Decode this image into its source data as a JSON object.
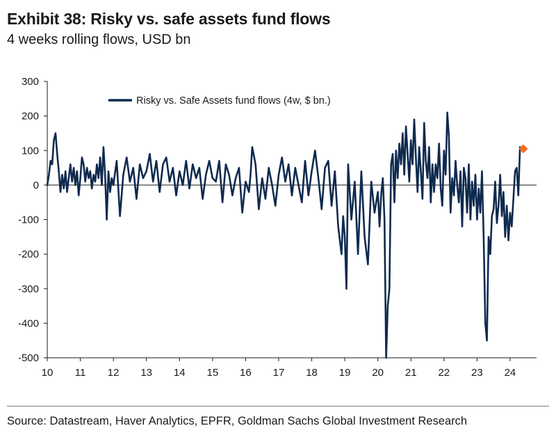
{
  "title": "Exhibit 38: Risky vs. safe assets fund flows",
  "subtitle": "4 weeks rolling flows, USD bn",
  "source": "Source: Datastream, Haver Analytics, EPFR, Goldman Sachs Global Investment Research",
  "colors": {
    "series": "#0f2a4f",
    "marker": "#f26b21",
    "axis": "#1a1a1a",
    "rule": "#7a7a7a"
  },
  "chart_data": {
    "type": "line",
    "title": "Exhibit 38: Risky vs. safe assets fund flows",
    "subtitle": "4 weeks rolling flows, USD bn",
    "xlabel": "",
    "ylabel": "",
    "xlim": [
      10,
      24.8
    ],
    "ylim": [
      -500,
      300
    ],
    "y_ticks": [
      300,
      200,
      100,
      0,
      -100,
      -200,
      -300,
      -400,
      -500
    ],
    "y_tick_labels": [
      "300",
      "200",
      "100",
      "0",
      "-100",
      "-200",
      "-300",
      "-400",
      "-500"
    ],
    "x_ticks": [
      10,
      11,
      12,
      13,
      14,
      15,
      16,
      17,
      18,
      19,
      20,
      21,
      22,
      23,
      24
    ],
    "x_tick_labels": [
      "10",
      "11",
      "12",
      "13",
      "14",
      "15",
      "16",
      "17",
      "18",
      "19",
      "20",
      "21",
      "22",
      "23",
      "24"
    ],
    "legend": {
      "position": "top-center",
      "entries": [
        "Risky vs. Safe Assets fund flows (4w, $ bn.)"
      ]
    },
    "grid": false,
    "series": [
      {
        "name": "Risky vs. Safe Assets fund flows (4w, $ bn.)",
        "x": [
          10.0,
          10.05,
          10.1,
          10.15,
          10.2,
          10.25,
          10.3,
          10.35,
          10.4,
          10.45,
          10.5,
          10.55,
          10.6,
          10.65,
          10.7,
          10.75,
          10.8,
          10.85,
          10.9,
          10.95,
          11.0,
          11.05,
          11.1,
          11.15,
          11.2,
          11.25,
          11.3,
          11.35,
          11.4,
          11.45,
          11.5,
          11.55,
          11.6,
          11.65,
          11.7,
          11.75,
          11.8,
          11.85,
          11.9,
          11.95,
          12.0,
          12.1,
          12.2,
          12.3,
          12.4,
          12.5,
          12.6,
          12.7,
          12.8,
          12.9,
          13.0,
          13.1,
          13.2,
          13.3,
          13.4,
          13.5,
          13.6,
          13.7,
          13.8,
          13.9,
          14.0,
          14.1,
          14.2,
          14.3,
          14.4,
          14.5,
          14.6,
          14.7,
          14.8,
          14.9,
          15.0,
          15.1,
          15.2,
          15.3,
          15.4,
          15.5,
          15.6,
          15.7,
          15.8,
          15.9,
          16.0,
          16.1,
          16.15,
          16.2,
          16.3,
          16.4,
          16.5,
          16.6,
          16.7,
          16.8,
          16.9,
          17.0,
          17.1,
          17.2,
          17.3,
          17.4,
          17.5,
          17.6,
          17.7,
          17.8,
          17.9,
          18.0,
          18.1,
          18.2,
          18.3,
          18.4,
          18.5,
          18.6,
          18.7,
          18.8,
          18.9,
          18.95,
          19.0,
          19.05,
          19.1,
          19.2,
          19.3,
          19.4,
          19.5,
          19.6,
          19.7,
          19.8,
          19.9,
          20.0,
          20.05,
          20.1,
          20.15,
          20.2,
          20.25,
          20.3,
          20.35,
          20.4,
          20.45,
          20.5,
          20.55,
          20.6,
          20.65,
          20.7,
          20.75,
          20.8,
          20.85,
          20.9,
          20.95,
          21.0,
          21.05,
          21.1,
          21.15,
          21.2,
          21.25,
          21.3,
          21.35,
          21.4,
          21.45,
          21.5,
          21.55,
          21.6,
          21.65,
          21.7,
          21.75,
          21.8,
          21.85,
          21.9,
          21.95,
          22.0,
          22.05,
          22.1,
          22.15,
          22.2,
          22.25,
          22.3,
          22.35,
          22.4,
          22.45,
          22.5,
          22.55,
          22.6,
          22.65,
          22.7,
          22.75,
          22.8,
          22.85,
          22.9,
          22.95,
          23.0,
          23.05,
          23.1,
          23.15,
          23.2,
          23.25,
          23.3,
          23.35,
          23.4,
          23.45,
          23.5,
          23.55,
          23.6,
          23.65,
          23.7,
          23.75,
          23.8,
          23.85,
          23.9,
          23.95,
          24.0,
          24.05,
          24.1,
          24.15,
          24.2,
          24.25,
          24.3
        ],
        "values": [
          0,
          30,
          70,
          60,
          130,
          150,
          90,
          40,
          -20,
          30,
          -10,
          40,
          -20,
          20,
          60,
          10,
          50,
          0,
          40,
          -30,
          20,
          80,
          60,
          10,
          50,
          20,
          40,
          -10,
          30,
          10,
          60,
          20,
          80,
          0,
          110,
          30,
          -100,
          40,
          -20,
          20,
          0,
          70,
          -90,
          30,
          80,
          10,
          50,
          -40,
          60,
          20,
          40,
          90,
          10,
          70,
          -20,
          60,
          80,
          10,
          50,
          -30,
          40,
          0,
          70,
          -10,
          60,
          20,
          50,
          -40,
          30,
          70,
          20,
          10,
          70,
          -50,
          60,
          30,
          -30,
          20,
          50,
          -80,
          10,
          -20,
          30,
          110,
          60,
          -70,
          20,
          -40,
          50,
          0,
          -60,
          30,
          80,
          10,
          60,
          -30,
          50,
          0,
          -50,
          70,
          -30,
          40,
          100,
          20,
          -70,
          50,
          70,
          -60,
          40,
          -120,
          -200,
          -90,
          -150,
          -300,
          60,
          -100,
          10,
          -200,
          40,
          -150,
          -230,
          10,
          -80,
          -20,
          -120,
          -30,
          20,
          -100,
          -500,
          -350,
          -300,
          60,
          90,
          -50,
          100,
          20,
          120,
          60,
          150,
          30,
          170,
          90,
          10,
          130,
          60,
          190,
          80,
          -20,
          110,
          40,
          -40,
          180,
          70,
          20,
          110,
          -50,
          60,
          -20,
          60,
          20,
          120,
          -10,
          -60,
          100,
          30,
          210,
          140,
          -80,
          20,
          -30,
          70,
          0,
          -50,
          40,
          -120,
          50,
          20,
          -80,
          60,
          -100,
          10,
          -60,
          30,
          -100,
          -10,
          -80,
          40,
          -150,
          -400,
          -450,
          -150,
          -200,
          -90,
          -70,
          10,
          -110,
          -60,
          30,
          -90,
          -20,
          -150,
          -60,
          -160,
          -80,
          -120,
          -40,
          40,
          50,
          -30,
          110
        ]
      }
    ],
    "annotations": [
      {
        "type": "marker",
        "shape": "diamond",
        "x": 24.4,
        "y": 105
      }
    ]
  }
}
